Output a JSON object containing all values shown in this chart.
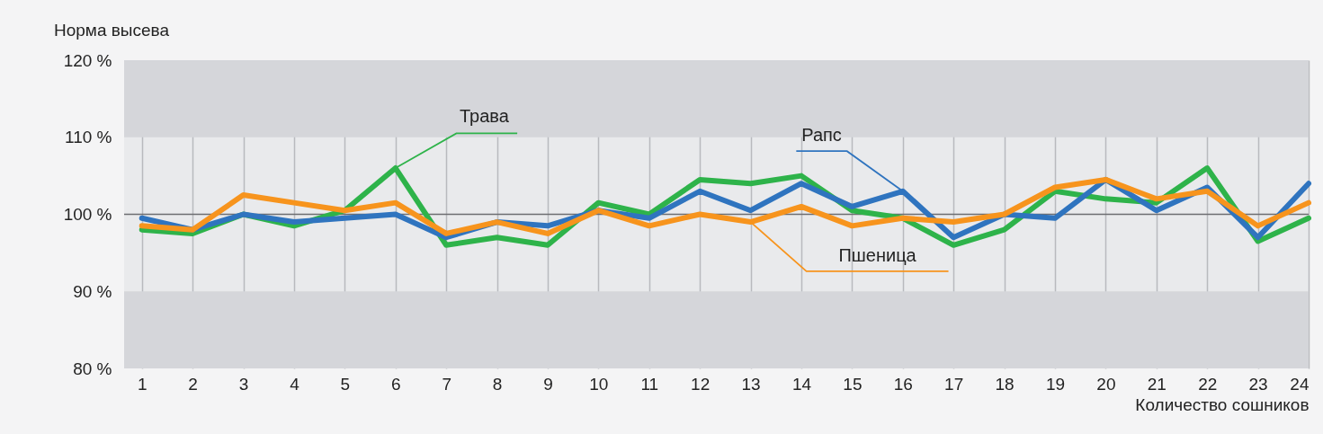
{
  "chart_data": {
    "type": "line",
    "ylabel": "Норма высева",
    "xlabel": "Количество сошников",
    "x": [
      1,
      2,
      3,
      4,
      5,
      6,
      7,
      8,
      9,
      10,
      11,
      12,
      13,
      14,
      15,
      16,
      17,
      18,
      19,
      20,
      21,
      22,
      23,
      24
    ],
    "series": [
      {
        "name": "Трава",
        "color": "#2eb34a",
        "values": [
          98,
          97.5,
          100,
          98.5,
          100.5,
          106,
          96,
          97,
          96,
          101.5,
          100,
          104.5,
          104,
          105,
          100.5,
          99.5,
          96,
          98,
          103,
          102,
          101.5,
          106,
          96.5,
          99.5
        ]
      },
      {
        "name": "Рапс",
        "color": "#2f74bf",
        "values": [
          99.5,
          98,
          100,
          99,
          99.5,
          100,
          97,
          99,
          98.5,
          100.5,
          99.5,
          103,
          100.5,
          104,
          101,
          103,
          97,
          100,
          99.5,
          104.5,
          100.5,
          103.5,
          97,
          104
        ]
      },
      {
        "name": "Пшеница",
        "color": "#f7941d",
        "values": [
          98.5,
          98,
          102.5,
          101.5,
          100.5,
          101.5,
          97.5,
          99,
          97.5,
          100.5,
          98.5,
          100,
          99,
          101,
          98.5,
          99.5,
          99,
          100,
          103.5,
          104.5,
          102,
          103,
          98.5,
          101.5
        ]
      }
    ],
    "xlim": [
      0.65,
      24
    ],
    "xticks": [
      1,
      2,
      3,
      4,
      5,
      6,
      7,
      8,
      9,
      10,
      11,
      12,
      13,
      14,
      15,
      16,
      17,
      18,
      19,
      20,
      21,
      22,
      23,
      24
    ],
    "ylim": [
      80,
      120
    ],
    "yticks": [
      {
        "value": 80,
        "label": "80 %"
      },
      {
        "value": 90,
        "label": "90 %"
      },
      {
        "value": 100,
        "label": "100 %"
      },
      {
        "value": 110,
        "label": "110 %"
      },
      {
        "value": 120,
        "label": "120 %"
      }
    ],
    "ref_lines": [
      {
        "axis": "y",
        "value": 100,
        "color": "#6d6e71"
      }
    ],
    "bands": [
      {
        "axis": "y",
        "from": 80,
        "to": 90,
        "color": "#d5d6da"
      },
      {
        "axis": "y",
        "from": 110,
        "to": 120,
        "color": "#d5d6da"
      }
    ],
    "grid": "x",
    "legend": false,
    "line_style": "solid",
    "marker": "none"
  }
}
